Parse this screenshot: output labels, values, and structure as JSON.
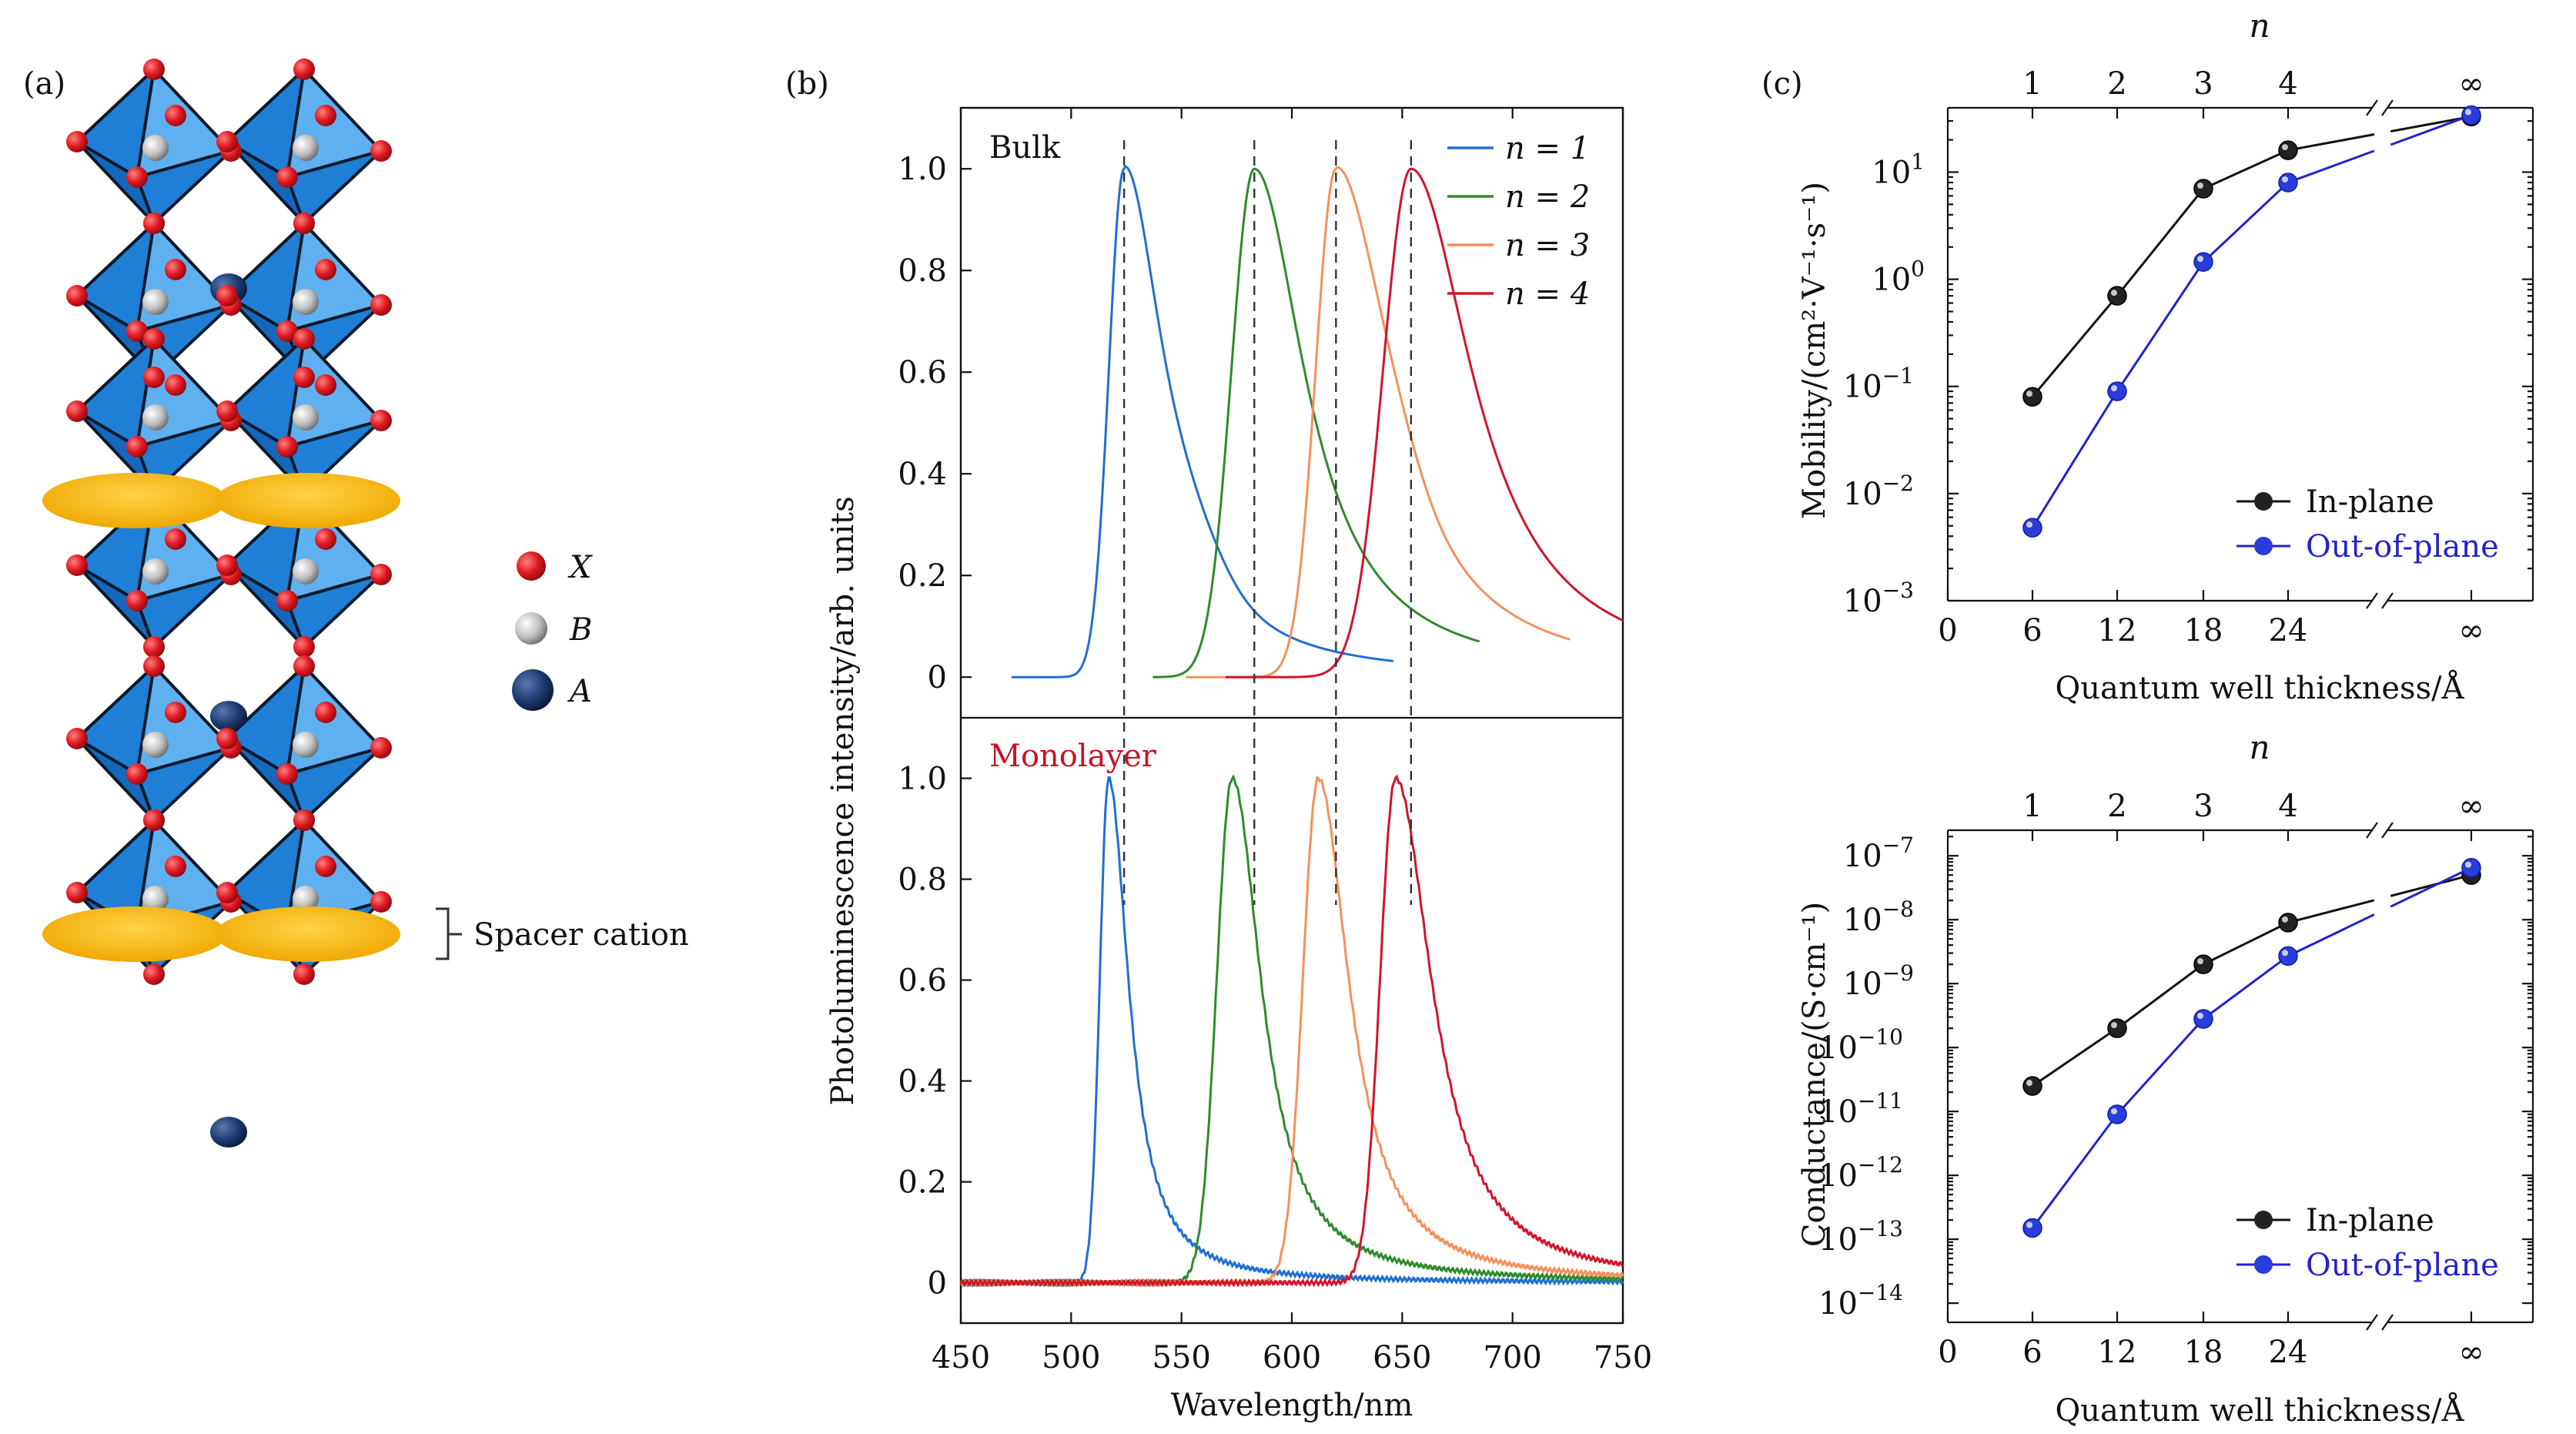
{
  "panels": {
    "a": {
      "label": "(a)",
      "legend": [
        {
          "symbol": "X",
          "color": "#d8121b"
        },
        {
          "symbol": "B",
          "color": "#c8c8c8"
        },
        {
          "symbol": "A",
          "color": "#1c3a6e"
        }
      ],
      "spacer_label": "Spacer cation",
      "colors": {
        "octahedron": "#1f7fd6",
        "spacer": "#f6b400"
      }
    },
    "b": {
      "label": "(b)",
      "top_title": "Bulk",
      "bottom_title": "Monolayer",
      "bottom_title_color": "#cc1122"
    },
    "c": {
      "label": "(c)"
    }
  },
  "chart_data": [
    {
      "id": "b-bulk",
      "type": "line",
      "title": "Bulk",
      "ylabel": "Photoluminescence intensity/arb. units",
      "xlabel": "",
      "xlim": [
        450,
        750
      ],
      "ylim": [
        -0.08,
        1.12
      ],
      "yticks": [
        "0",
        "0.2",
        "0.4",
        "0.6",
        "0.8",
        "1.0"
      ],
      "series": [
        {
          "name": "n = 1",
          "color": "#1f6fd0",
          "peak": 524,
          "wl": 6,
          "wr": 22,
          "start": 473,
          "end": 646
        },
        {
          "name": "n = 2",
          "color": "#2e8b2e",
          "peak": 583,
          "wl": 9,
          "wr": 28,
          "start": 537,
          "end": 685
        },
        {
          "name": "n = 3",
          "color": "#f4905a",
          "peak": 620,
          "wl": 8,
          "wr": 30,
          "start": 552,
          "end": 726
        },
        {
          "name": "n = 4",
          "color": "#d2142c",
          "peak": 654,
          "wl": 11,
          "wr": 34,
          "start": 570,
          "end": 750
        }
      ],
      "dashed_peaks": [
        524,
        583,
        620,
        654
      ]
    },
    {
      "id": "b-monolayer",
      "type": "line",
      "title": "Monolayer",
      "xlabel": "Wavelength/nm",
      "xlim": [
        450,
        750
      ],
      "ylim": [
        -0.08,
        1.12
      ],
      "xticks": [
        "450",
        "500",
        "550",
        "600",
        "650",
        "700",
        "750"
      ],
      "yticks": [
        "0",
        "0.2",
        "0.4",
        "0.6",
        "0.8",
        "1.0"
      ],
      "series": [
        {
          "name": "n = 1",
          "color": "#1f6fd0",
          "peak": 517,
          "wl": 4,
          "wr": 11,
          "start": 450,
          "end": 750
        },
        {
          "name": "n = 2",
          "color": "#2e8b2e",
          "peak": 573,
          "wl": 7,
          "wr": 16,
          "start": 450,
          "end": 750
        },
        {
          "name": "n = 3",
          "color": "#f4905a",
          "peak": 612,
          "wl": 7,
          "wr": 17,
          "start": 450,
          "end": 750
        },
        {
          "name": "n = 4",
          "color": "#d2142c",
          "peak": 647,
          "wl": 7,
          "wr": 20,
          "start": 450,
          "end": 750
        }
      ]
    },
    {
      "id": "c-mobility",
      "type": "line",
      "scale": "log",
      "ylabel": "Mobility/(cm²·V⁻¹·s⁻¹)",
      "xlabel": "Quantum well thickness/Å",
      "top_axis_label": "n",
      "top_ticks": [
        "1",
        "2",
        "3",
        "4",
        "∞"
      ],
      "xticks": [
        "0",
        "6",
        "12",
        "18",
        "24",
        "∞"
      ],
      "ytick_exponents": [
        -3,
        -2,
        -1,
        0,
        1
      ],
      "ylim_exp": [
        -3,
        1.6
      ],
      "series": [
        {
          "name": "In-plane",
          "color": "#111111",
          "values": [
            0.08,
            0.7,
            7,
            16,
            33
          ]
        },
        {
          "name": "Out-of-plane",
          "color": "#2222cc",
          "values": [
            0.0048,
            0.09,
            1.45,
            8,
            34
          ]
        }
      ],
      "categories": [
        "6",
        "12",
        "18",
        "24",
        "∞"
      ]
    },
    {
      "id": "c-conductance",
      "type": "line",
      "scale": "log",
      "ylabel": "Conductance/(S·cm⁻¹)",
      "xlabel": "Quantum well thickness/Å",
      "top_axis_label": "n",
      "top_ticks": [
        "1",
        "2",
        "3",
        "4",
        "∞"
      ],
      "xticks": [
        "0",
        "6",
        "12",
        "18",
        "24",
        "∞"
      ],
      "ytick_exponents": [
        -14,
        -13,
        -12,
        -11,
        -10,
        -9,
        -8,
        -7
      ],
      "ylim_exp": [
        -14.3,
        -6.6
      ],
      "series": [
        {
          "name": "In-plane",
          "color": "#111111",
          "values": [
            2.5e-11,
            2e-10,
            2e-09,
            9e-09,
            5e-08
          ]
        },
        {
          "name": "Out-of-plane",
          "color": "#2222cc",
          "values": [
            1.5e-13,
            9e-12,
            2.8e-10,
            2.7e-09,
            6.5e-08
          ]
        }
      ],
      "categories": [
        "6",
        "12",
        "18",
        "24",
        "∞"
      ]
    }
  ]
}
